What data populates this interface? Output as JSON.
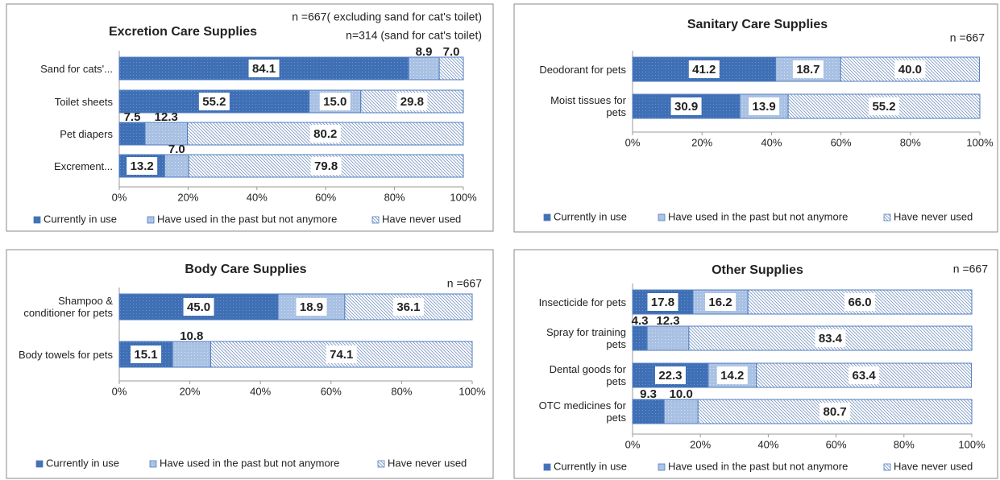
{
  "chart_data": [
    {
      "type": "stacked-barh",
      "title": "Excretion Care Supplies",
      "annotations": [
        "n =667( excluding sand for cat's toilet)",
        "n=314 (sand for cat's toilet)"
      ],
      "categories": [
        "Sand for cats'...",
        "Toilet sheets",
        "Pet diapers",
        "Excrement..."
      ],
      "series": [
        {
          "name": "Currently in use",
          "color": "#3f6fb5",
          "values": [
            84.1,
            55.2,
            7.5,
            13.2
          ],
          "value_labels": [
            "84.1",
            "55.2",
            "7.5",
            "13.2"
          ]
        },
        {
          "name": "Have used in the past but not anymore",
          "color": "#a9c1e3",
          "values": [
            8.9,
            15.0,
            12.3,
            7.0
          ],
          "value_labels": [
            "8.9",
            "15.0",
            "12.3",
            "7.0"
          ]
        },
        {
          "name": "Have never used",
          "color": "#ffffff",
          "values": [
            7.0,
            29.8,
            80.2,
            79.8
          ],
          "value_labels": [
            "7.0",
            "29.8",
            "80.2",
            "79.8"
          ]
        }
      ],
      "xlim": [
        0,
        100
      ],
      "xticks": [
        {
          "value": 0,
          "label": "0%"
        },
        {
          "value": 20,
          "label": "20%"
        },
        {
          "value": 40,
          "label": "40%"
        },
        {
          "value": 60,
          "label": "60%"
        },
        {
          "value": 80,
          "label": "80%"
        },
        {
          "value": 100,
          "label": "100%"
        }
      ],
      "legend": "bottom"
    },
    {
      "type": "stacked-barh",
      "title": "Sanitary Care Supplies",
      "annotations": [
        "n =667"
      ],
      "categories": [
        "Deodorant for pets",
        "Moist tissues for pets"
      ],
      "series": [
        {
          "name": "Currently in use",
          "color": "#3f6fb5",
          "values": [
            41.2,
            30.9
          ],
          "value_labels": [
            "41.2",
            "30.9"
          ]
        },
        {
          "name": "Have used in the past but not anymore",
          "color": "#a9c1e3",
          "values": [
            18.7,
            13.9
          ],
          "value_labels": [
            "18.7",
            "13.9"
          ]
        },
        {
          "name": "Have never used",
          "color": "#ffffff",
          "values": [
            40.0,
            55.2
          ],
          "value_labels": [
            "40.0",
            "55.2"
          ]
        }
      ],
      "xlim": [
        0,
        100
      ],
      "xticks": [
        {
          "value": 0,
          "label": "0%"
        },
        {
          "value": 20,
          "label": "20%"
        },
        {
          "value": 40,
          "label": "40%"
        },
        {
          "value": 60,
          "label": "60%"
        },
        {
          "value": 80,
          "label": "80%"
        },
        {
          "value": 100,
          "label": "100%"
        }
      ],
      "legend": "bottom"
    },
    {
      "type": "stacked-barh",
      "title": "Body Care Supplies",
      "annotations": [
        "n =667"
      ],
      "categories": [
        "Shampoo & conditioner for pets",
        "Body towels for pets"
      ],
      "series": [
        {
          "name": "Currently in use",
          "color": "#3f6fb5",
          "values": [
            45.0,
            15.1
          ],
          "value_labels": [
            "45.0",
            "15.1"
          ]
        },
        {
          "name": "Have used in the past but not anymore",
          "color": "#a9c1e3",
          "values": [
            18.9,
            10.8
          ],
          "value_labels": [
            "18.9",
            "10.8"
          ]
        },
        {
          "name": "Have never used",
          "color": "#ffffff",
          "values": [
            36.1,
            74.1
          ],
          "value_labels": [
            "36.1",
            "74.1"
          ]
        }
      ],
      "xlim": [
        0,
        100
      ],
      "xticks": [
        {
          "value": 0,
          "label": "0%"
        },
        {
          "value": 20,
          "label": "20%"
        },
        {
          "value": 40,
          "label": "40%"
        },
        {
          "value": 60,
          "label": "60%"
        },
        {
          "value": 80,
          "label": "80%"
        },
        {
          "value": 100,
          "label": "100%"
        }
      ],
      "legend": "bottom"
    },
    {
      "type": "stacked-barh",
      "title": "Other Supplies",
      "annotations": [
        "n =667"
      ],
      "categories": [
        "Insecticide for pets",
        "Spray for training pets",
        "Dental goods for pets",
        "OTC medicines for pets"
      ],
      "series": [
        {
          "name": "Currently in use",
          "color": "#3f6fb5",
          "values": [
            17.8,
            4.3,
            22.3,
            9.3
          ],
          "value_labels": [
            "17.8",
            "4.3",
            "22.3",
            "9.3"
          ]
        },
        {
          "name": "Have used in the past but not anymore",
          "color": "#a9c1e3",
          "values": [
            16.2,
            12.3,
            14.2,
            10.0
          ],
          "value_labels": [
            "16.2",
            "12.3",
            "14.2",
            "10.0"
          ]
        },
        {
          "name": "Have never used",
          "color": "#ffffff",
          "values": [
            66.0,
            83.4,
            63.4,
            80.7
          ],
          "value_labels": [
            "66.0",
            "83.4",
            "63.4",
            "80.7"
          ]
        }
      ],
      "xlim": [
        0,
        100
      ],
      "xticks": [
        {
          "value": 0,
          "label": "0%"
        },
        {
          "value": 20,
          "label": "20%"
        },
        {
          "value": 40,
          "label": "40%"
        },
        {
          "value": 60,
          "label": "60%"
        },
        {
          "value": 80,
          "label": "80%"
        },
        {
          "value": 100,
          "label": "100%"
        }
      ],
      "legend": "bottom"
    }
  ]
}
